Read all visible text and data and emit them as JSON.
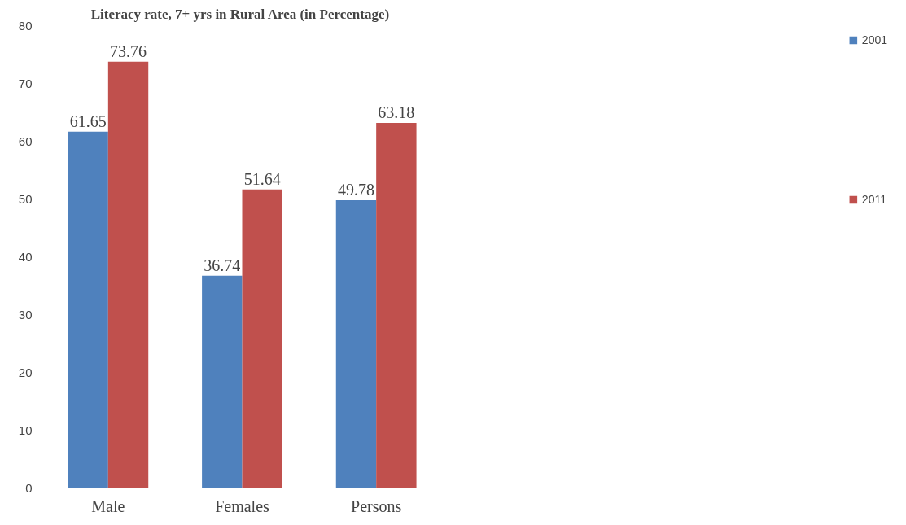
{
  "chart_data": {
    "type": "bar",
    "title": "Literacy rate, 7+ yrs  in Rural Area (in Percentage)",
    "categories": [
      "Male",
      "Females",
      "Persons"
    ],
    "series": [
      {
        "name": "2001",
        "color": "#4f81bd",
        "values": [
          61.65,
          36.74,
          49.78
        ]
      },
      {
        "name": "2011",
        "color": "#c0504d",
        "values": [
          73.76,
          51.64,
          63.18
        ]
      }
    ],
    "ylim": [
      0,
      80
    ],
    "yticks": [
      0,
      10,
      20,
      30,
      40,
      50,
      60,
      70,
      80
    ],
    "grid": false,
    "legend": "right",
    "data_labels": true
  }
}
